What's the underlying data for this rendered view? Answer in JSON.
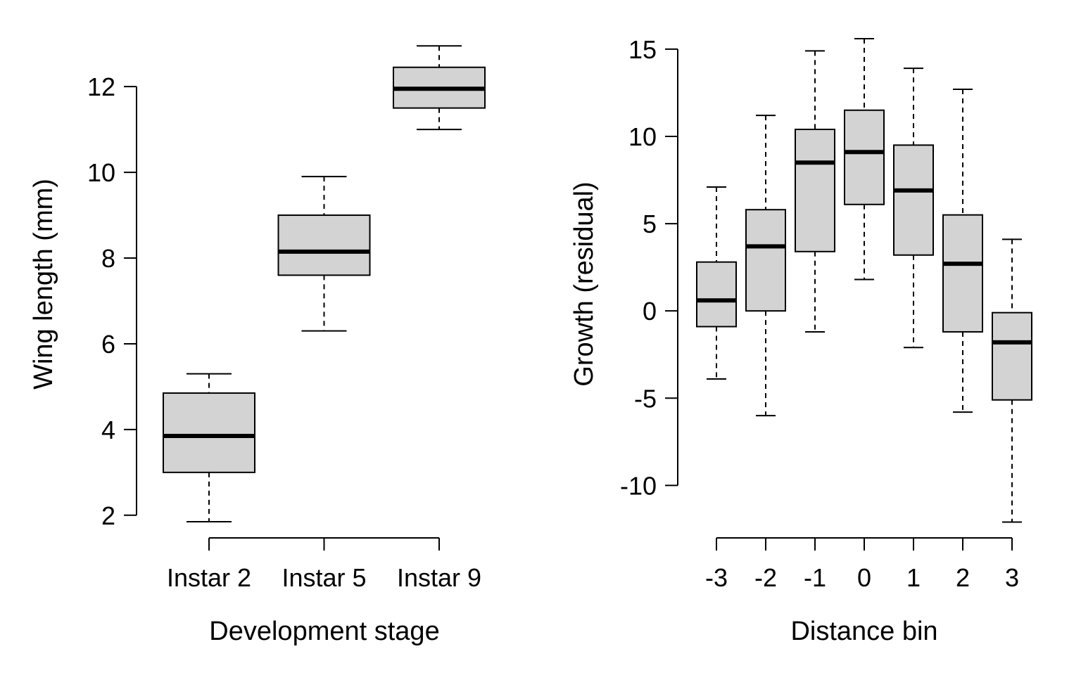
{
  "chart_data": [
    {
      "type": "boxplot",
      "title": "",
      "xlabel": "Development stage",
      "ylabel": "Wing length (mm)",
      "ylim": [
        1.8,
        13.2
      ],
      "yticks": [
        "2",
        "4",
        "6",
        "8",
        "10",
        "12"
      ],
      "categories": [
        "Instar 2",
        "Instar 5",
        "Instar 9"
      ],
      "boxes": [
        {
          "min": 1.85,
          "q1": 3.0,
          "median": 3.85,
          "q3": 4.85,
          "max": 5.3
        },
        {
          "min": 6.3,
          "q1": 7.6,
          "median": 8.15,
          "q3": 9.0,
          "max": 9.9
        },
        {
          "min": 11.0,
          "q1": 11.5,
          "median": 11.95,
          "q3": 12.45,
          "max": 12.95
        }
      ],
      "fill_color": "#d3d3d3",
      "grid": false
    },
    {
      "type": "boxplot",
      "title": "",
      "xlabel": "Distance bin",
      "ylabel": "Growth (residual)",
      "ylim": [
        -12.2,
        15.8
      ],
      "yticks": [
        "-10",
        "-5",
        "0",
        "5",
        "10",
        "15"
      ],
      "categories": [
        "-3",
        "-2",
        "-1",
        "0",
        "1",
        "2",
        "3"
      ],
      "boxes": [
        {
          "min": -3.9,
          "q1": -0.9,
          "median": 0.6,
          "q3": 2.8,
          "max": 7.1
        },
        {
          "min": -6.0,
          "q1": 0.0,
          "median": 3.7,
          "q3": 5.8,
          "max": 11.2
        },
        {
          "min": -1.2,
          "q1": 3.4,
          "median": 8.5,
          "q3": 10.4,
          "max": 14.9
        },
        {
          "min": 1.8,
          "q1": 6.1,
          "median": 9.1,
          "q3": 11.5,
          "max": 15.6
        },
        {
          "min": -2.1,
          "q1": 3.2,
          "median": 6.9,
          "q3": 9.5,
          "max": 13.9
        },
        {
          "min": -5.8,
          "q1": -1.2,
          "median": 2.7,
          "q3": 5.5,
          "max": 12.7
        },
        {
          "min": -12.1,
          "q1": -5.1,
          "median": -1.8,
          "q3": -0.1,
          "max": 4.1
        }
      ],
      "fill_color": "#d3d3d3",
      "grid": false
    }
  ]
}
